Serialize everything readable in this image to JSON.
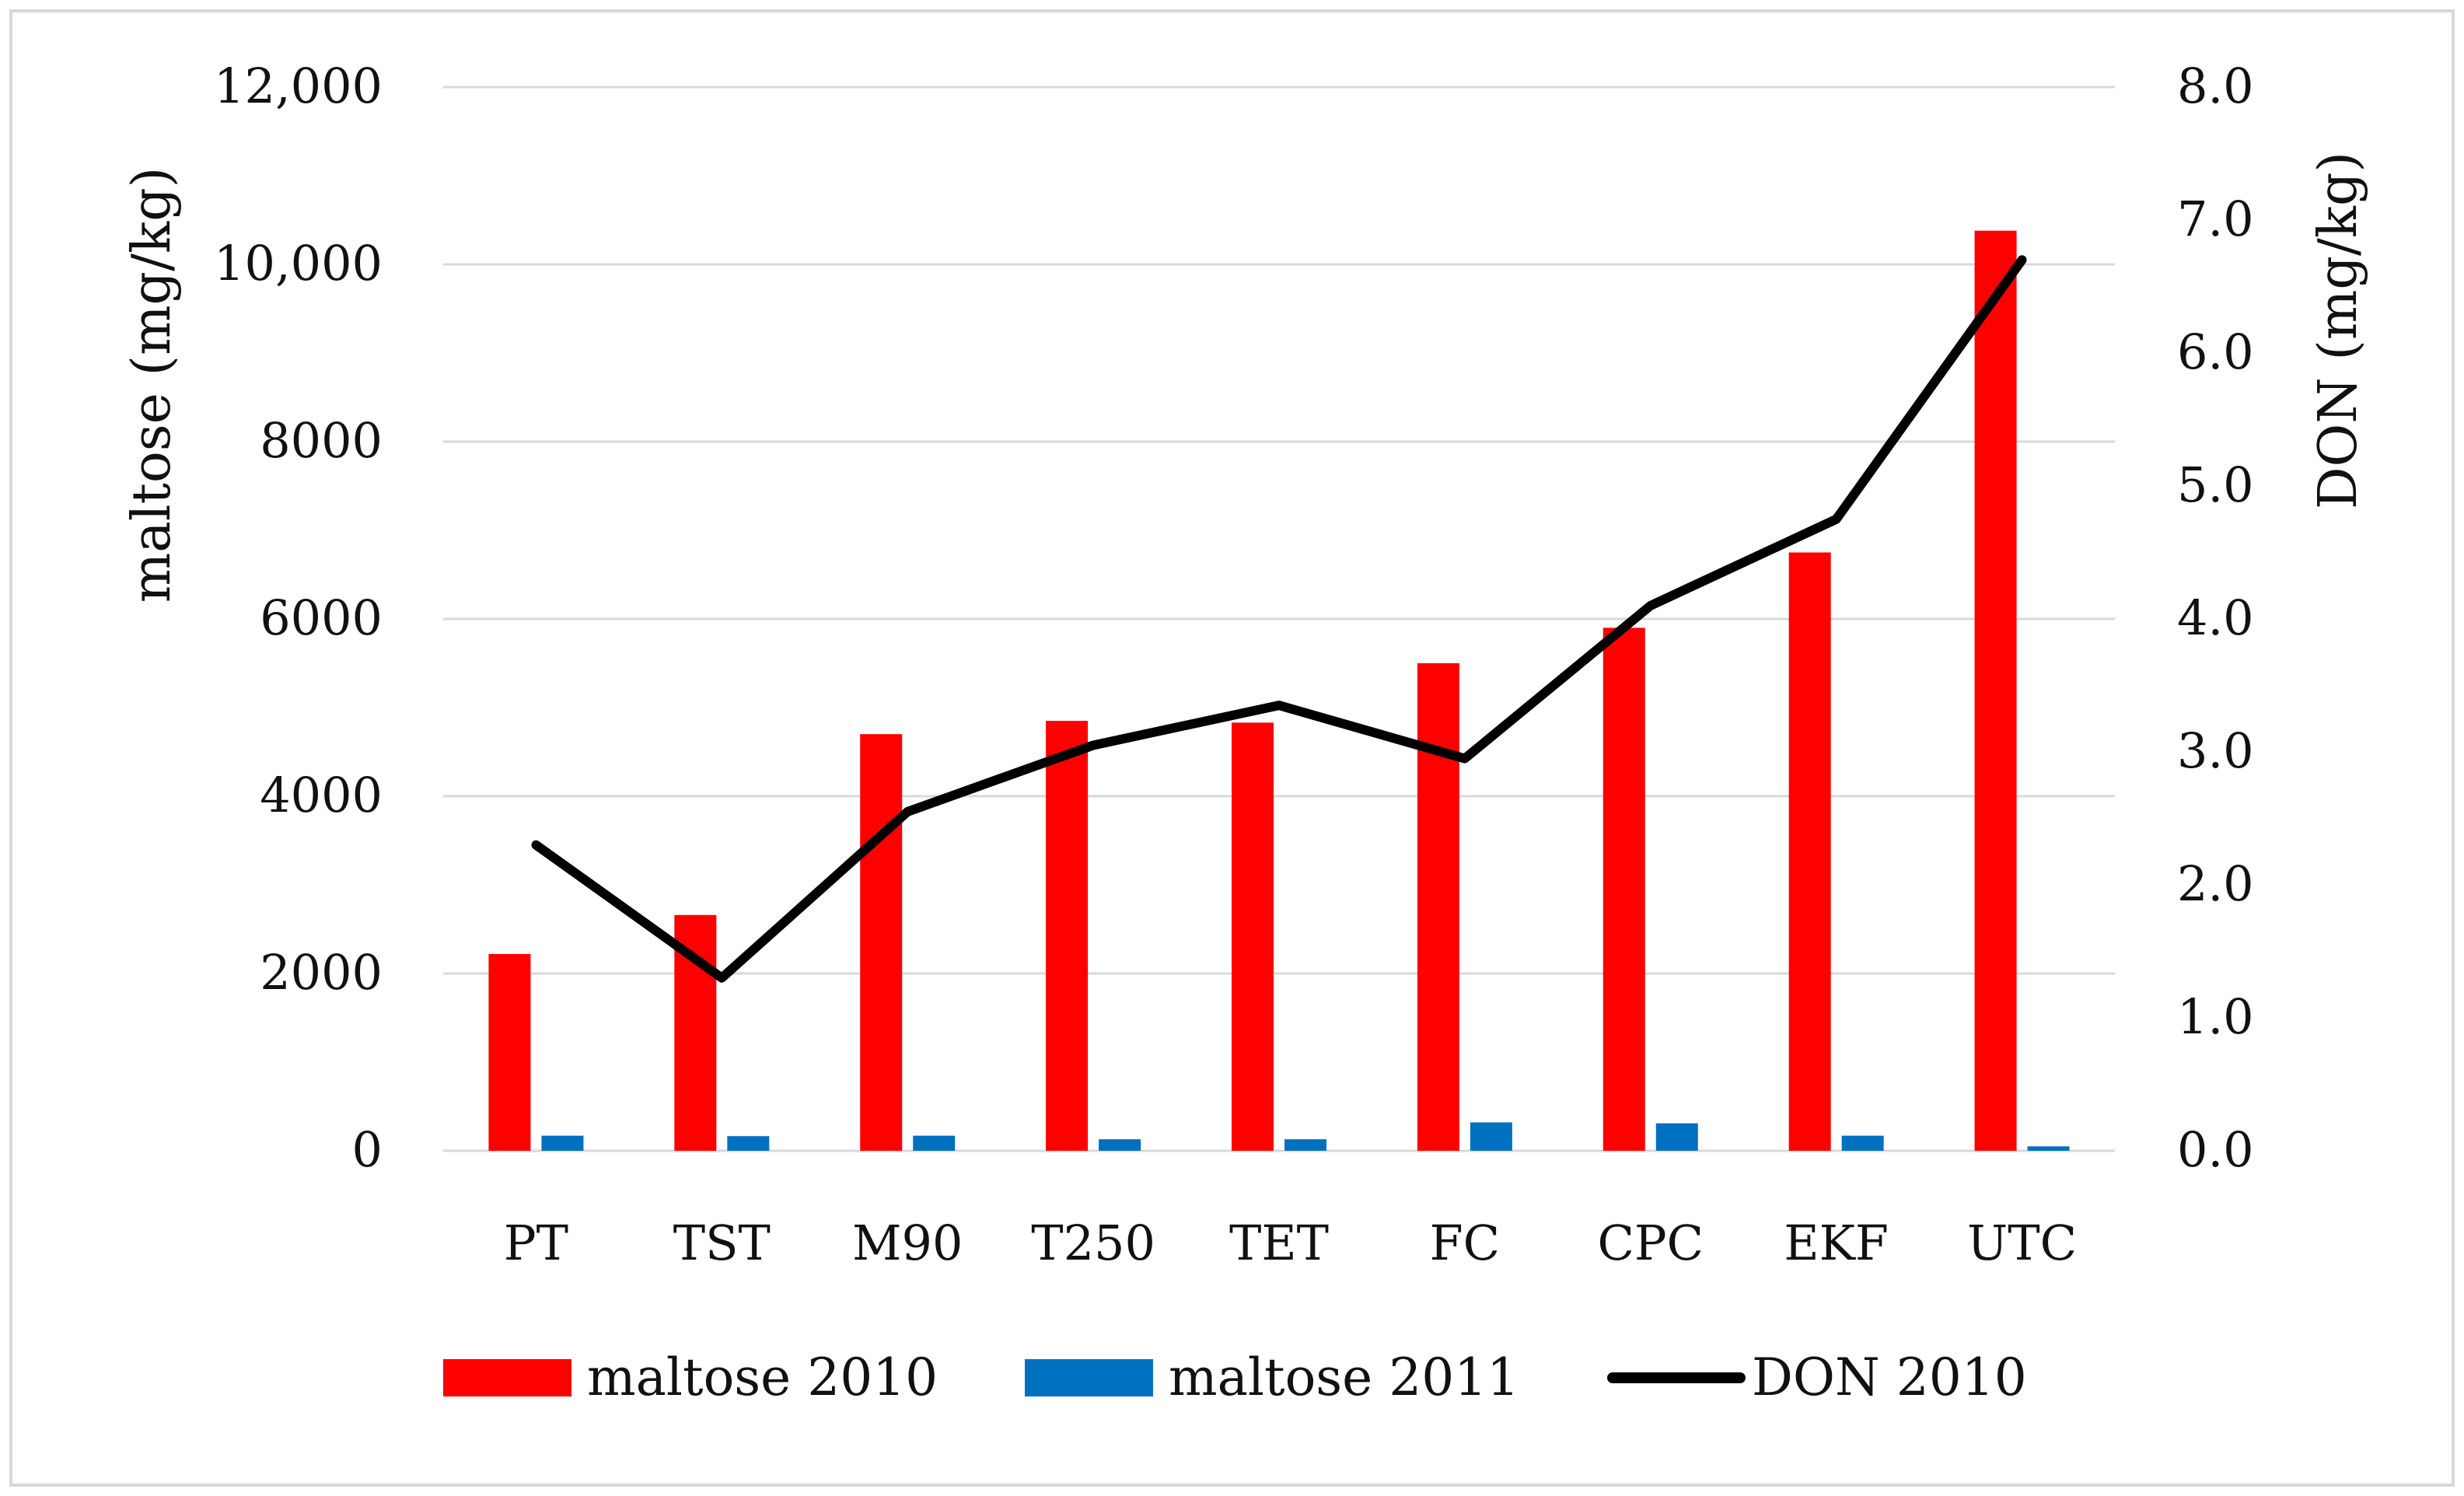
{
  "chart_data": {
    "type": "bar",
    "title": "",
    "categories": [
      "PT",
      "TST",
      "M90",
      "T250",
      "TET",
      "FC",
      "CPC",
      "EKF",
      "UTC"
    ],
    "series": [
      {
        "name": "maltose 2010",
        "type": "bar",
        "axis": "left",
        "color": "#ff0000",
        "values": [
          2220,
          2660,
          4700,
          4850,
          4830,
          5500,
          5900,
          6750,
          10380
        ]
      },
      {
        "name": "maltose 2011",
        "type": "bar",
        "axis": "left",
        "color": "#0070c0",
        "values": [
          170,
          165,
          170,
          130,
          130,
          320,
          310,
          170,
          50
        ]
      },
      {
        "name": "DON 2010",
        "type": "line",
        "axis": "right",
        "color": "#000000",
        "values": [
          2.3,
          1.3,
          2.55,
          3.05,
          3.35,
          2.95,
          4.1,
          4.75,
          6.7
        ]
      }
    ],
    "y_left": {
      "label": "maltose (mg/kg)",
      "ylim": [
        0,
        12000
      ],
      "tick_values": [
        0,
        2000,
        4000,
        6000,
        8000,
        10000,
        12000
      ],
      "tick_labels": [
        "0",
        "2000",
        "4000",
        "6000",
        "8000",
        "10,000",
        "12,000"
      ]
    },
    "y_right": {
      "label": "DON (mg/kg)",
      "ylim": [
        0,
        8
      ],
      "tick_values": [
        0,
        1,
        2,
        3,
        4,
        5,
        6,
        7,
        8
      ],
      "tick_labels": [
        "0.0",
        "1.0",
        "2.0",
        "3.0",
        "4.0",
        "5.0",
        "6.0",
        "7.0",
        "8.0"
      ]
    },
    "grid": true,
    "legend_position": "bottom",
    "legend": [
      "maltose 2010",
      "maltose 2011",
      "DON 2010"
    ]
  }
}
